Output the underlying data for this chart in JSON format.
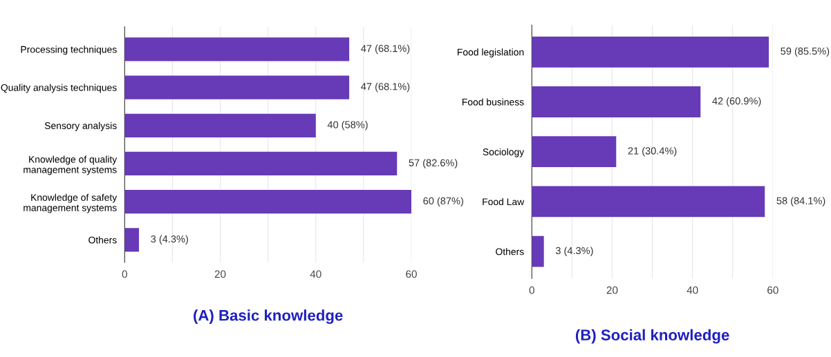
{
  "chart_data": [
    {
      "type": "bar",
      "orientation": "horizontal",
      "title": "(A) Basic knowledge",
      "categories": [
        "Processing techniques",
        "Quality analysis techniques",
        "Sensory analysis",
        "Knowledge of quality\nmanagement systems",
        "Knowledge of safety\nmanagement systems",
        "Others"
      ],
      "values": [
        47,
        47,
        40,
        57,
        60,
        3
      ],
      "value_labels": [
        "47 (68.1%)",
        "47 (68.1%)",
        "40 (58%)",
        "57 (82.6%)",
        "60 (87%)",
        "3 (4.3%)"
      ],
      "color": "#673ab7",
      "xlim": [
        0,
        60
      ],
      "xticks": [
        0,
        {
          "value": 10,
          "label": null
        },
        20,
        {
          "value": 30,
          "label": null
        },
        40,
        {
          "value": 50,
          "label": null
        },
        60
      ],
      "grid": "x"
    },
    {
      "type": "bar",
      "orientation": "horizontal",
      "title": "(B) Social knowledge",
      "categories": [
        "Food legislation",
        "Food business",
        "Sociology",
        "Food Law",
        "Others"
      ],
      "values": [
        59,
        42,
        21,
        58,
        3
      ],
      "value_labels": [
        "59 (85.5%)",
        "42 (60.9%)",
        "21 (30.4%)",
        "58 (84.1%)",
        "3 (4.3%)"
      ],
      "color": "#673ab7",
      "xlim": [
        0,
        60
      ],
      "xticks": [
        0,
        {
          "value": 10,
          "label": null
        },
        20,
        {
          "value": 30,
          "label": null
        },
        40,
        {
          "value": 50,
          "label": null
        },
        60
      ],
      "grid": "x"
    }
  ]
}
